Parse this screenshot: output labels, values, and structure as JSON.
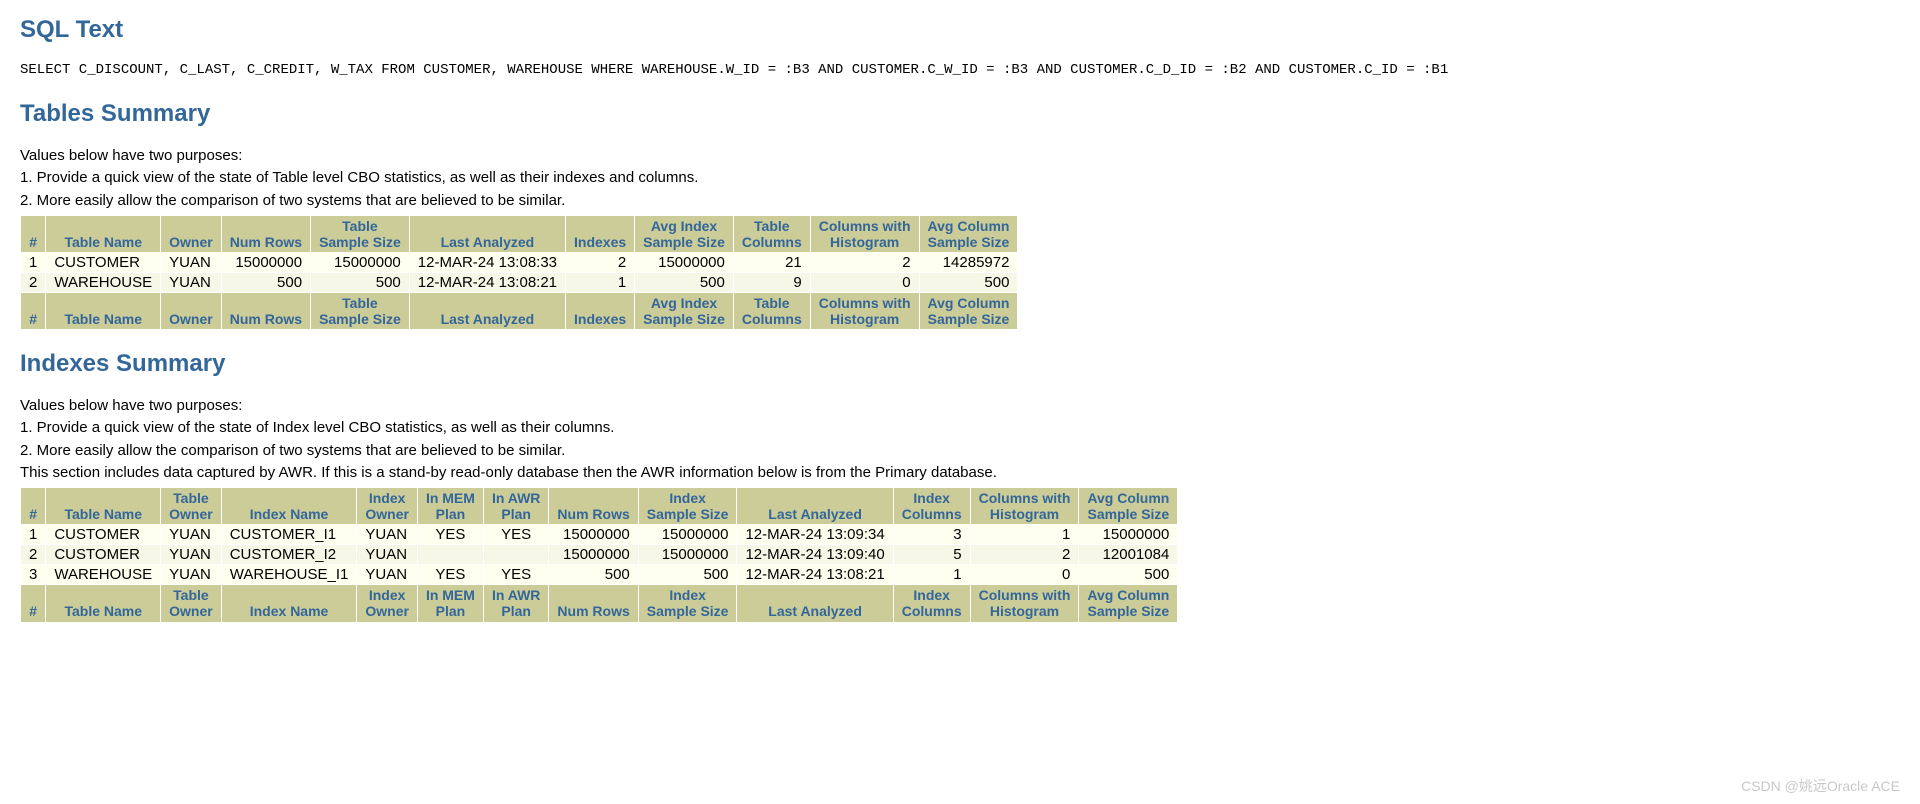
{
  "headings": {
    "sql_text": "SQL Text",
    "tables_summary": "Tables Summary",
    "indexes_summary": "Indexes Summary"
  },
  "sql_text": "SELECT C_DISCOUNT, C_LAST, C_CREDIT, W_TAX FROM CUSTOMER, WAREHOUSE WHERE WAREHOUSE.W_ID = :B3 AND CUSTOMER.C_W_ID = :B3 AND CUSTOMER.C_D_ID = :B2 AND CUSTOMER.C_ID = :B1",
  "tables_section": {
    "intro": [
      "Values below have two purposes:",
      "1. Provide a quick view of the state of Table level CBO statistics, as well as their indexes and columns.",
      "2. More easily allow the comparison of two systems that are believed to be similar."
    ],
    "columns": [
      {
        "label": "#",
        "align": "tr"
      },
      {
        "label": "Table Name",
        "align": "tl"
      },
      {
        "label": "Owner",
        "align": "tl"
      },
      {
        "label": "Num Rows",
        "align": "tr"
      },
      {
        "label": "Table\nSample Size",
        "align": "tr"
      },
      {
        "label": "Last Analyzed",
        "align": "tl"
      },
      {
        "label": "Indexes",
        "align": "tr"
      },
      {
        "label": "Avg Index\nSample Size",
        "align": "tr"
      },
      {
        "label": "Table\nColumns",
        "align": "tr"
      },
      {
        "label": "Columns with\nHistogram",
        "align": "tr"
      },
      {
        "label": "Avg Column\nSample Size",
        "align": "tr"
      }
    ],
    "rows": [
      [
        "1",
        "CUSTOMER",
        "YUAN",
        "15000000",
        "15000000",
        "12-MAR-24 13:08:33",
        "2",
        "15000000",
        "21",
        "2",
        "14285972"
      ],
      [
        "2",
        "WAREHOUSE",
        "YUAN",
        "500",
        "500",
        "12-MAR-24 13:08:21",
        "1",
        "500",
        "9",
        "0",
        "500"
      ]
    ]
  },
  "indexes_section": {
    "intro": [
      "Values below have two purposes:",
      "1. Provide a quick view of the state of Index level CBO statistics, as well as their columns.",
      "2. More easily allow the comparison of two systems that are believed to be similar.",
      "This section includes data captured by AWR. If this is a stand-by read-only database then the AWR information below is from the Primary database."
    ],
    "columns": [
      {
        "label": "#",
        "align": "tr"
      },
      {
        "label": "Table Name",
        "align": "tl"
      },
      {
        "label": "Table\nOwner",
        "align": "tl"
      },
      {
        "label": "Index Name",
        "align": "tl"
      },
      {
        "label": "Index\nOwner",
        "align": "tl"
      },
      {
        "label": "In MEM\nPlan",
        "align": "tc"
      },
      {
        "label": "In AWR\nPlan",
        "align": "tc"
      },
      {
        "label": "Num Rows",
        "align": "tr"
      },
      {
        "label": "Index\nSample Size",
        "align": "tr"
      },
      {
        "label": "Last Analyzed",
        "align": "tl"
      },
      {
        "label": "Index\nColumns",
        "align": "tr"
      },
      {
        "label": "Columns with\nHistogram",
        "align": "tr"
      },
      {
        "label": "Avg Column\nSample Size",
        "align": "tr"
      }
    ],
    "rows": [
      [
        "1",
        "CUSTOMER",
        "YUAN",
        "CUSTOMER_I1",
        "YUAN",
        "YES",
        "YES",
        "15000000",
        "15000000",
        "12-MAR-24 13:09:34",
        "3",
        "1",
        "15000000"
      ],
      [
        "2",
        "CUSTOMER",
        "YUAN",
        "CUSTOMER_I2",
        "YUAN",
        "",
        "",
        "15000000",
        "15000000",
        "12-MAR-24 13:09:40",
        "5",
        "2",
        "12001084"
      ],
      [
        "3",
        "WAREHOUSE",
        "YUAN",
        "WAREHOUSE_I1",
        "YUAN",
        "YES",
        "YES",
        "500",
        "500",
        "12-MAR-24 13:08:21",
        "1",
        "0",
        "500"
      ]
    ]
  },
  "watermark": "CSDN @姚远Oracle ACE"
}
